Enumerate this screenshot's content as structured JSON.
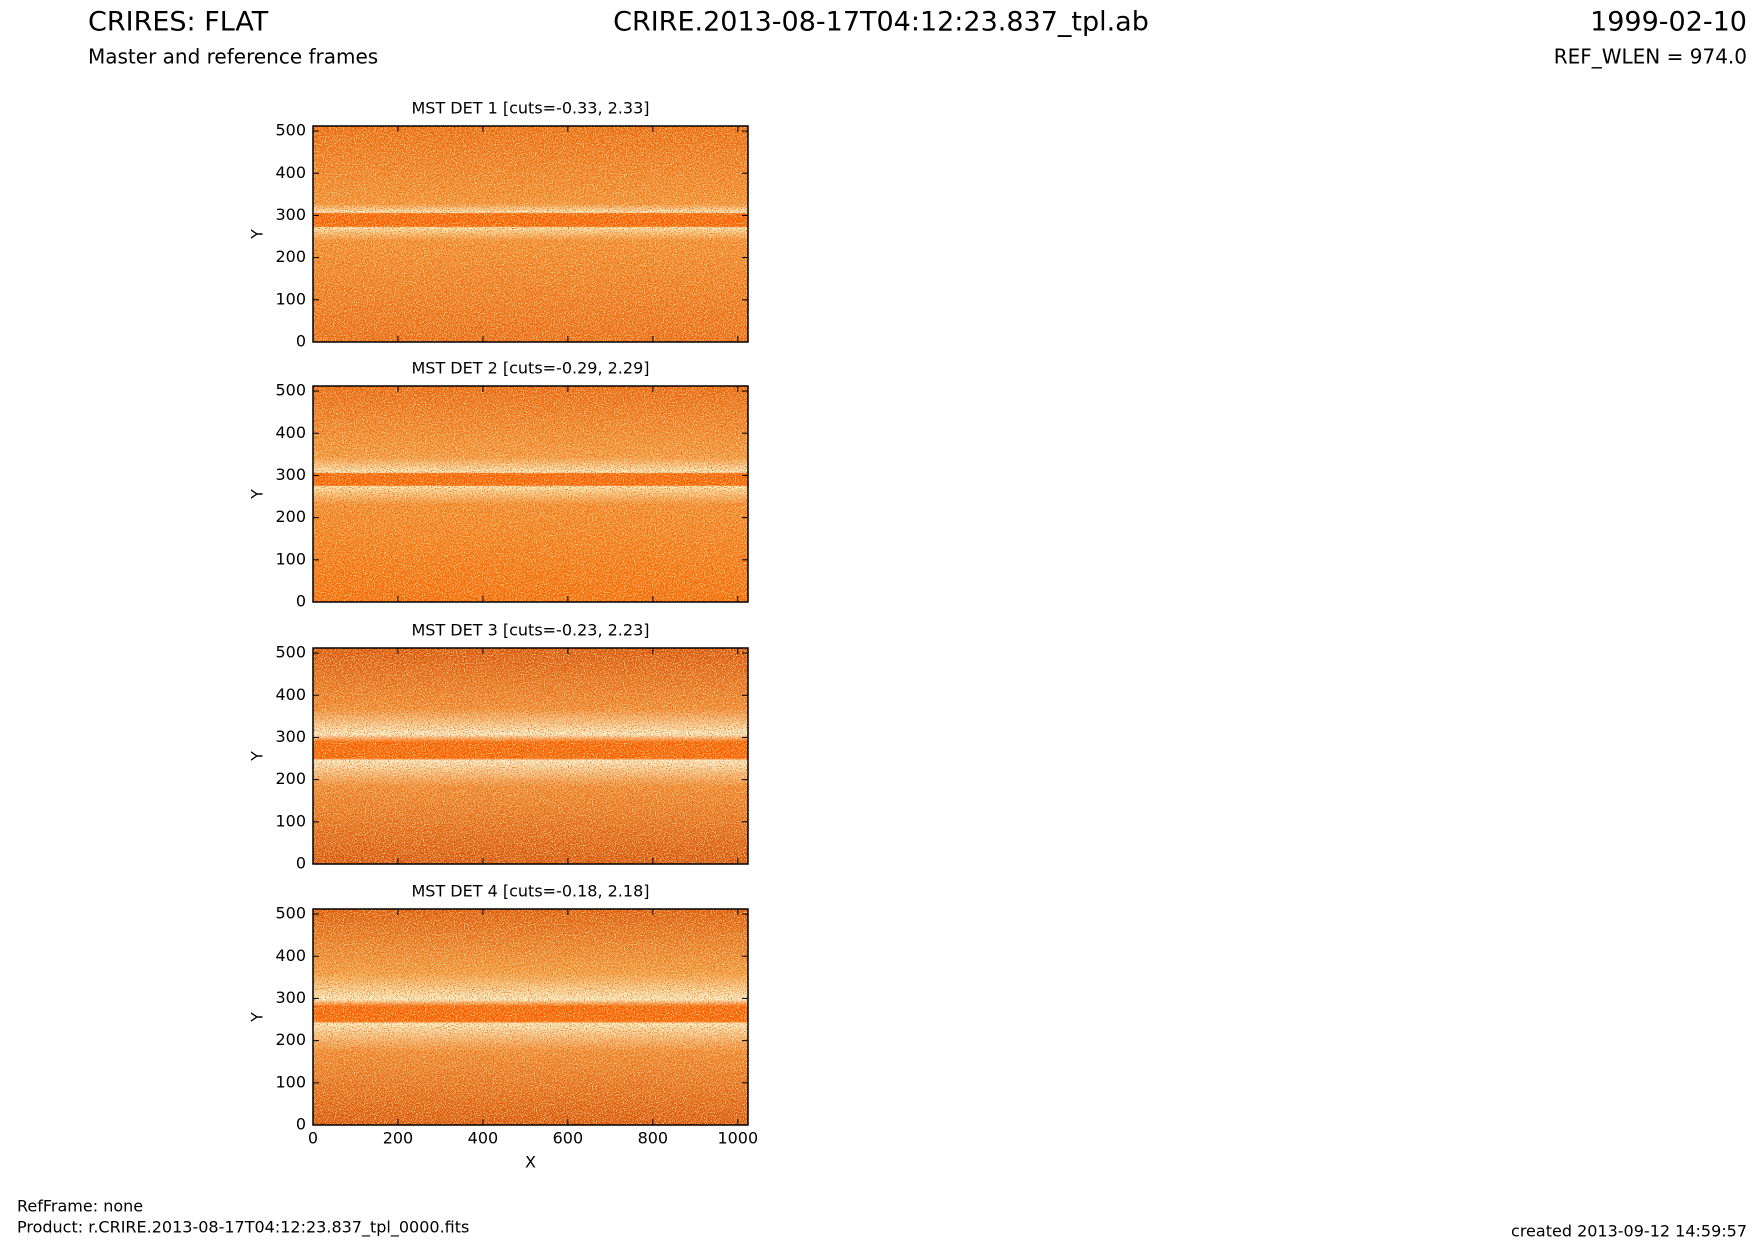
{
  "header": {
    "title": "CRIRES: FLAT",
    "subtitle": "Master and reference frames",
    "file": "CRIRE.2013-08-17T04:12:23.837_tpl.ab",
    "date": "1999-02-10",
    "ref_wlen": "REF_WLEN = 974.0"
  },
  "footer": {
    "ref_frame": "RefFrame: none",
    "product": "Product: r.CRIRE.2013-08-17T04:12:23.837_tpl_0000.fits",
    "created": "created 2013-09-12 14:59:57"
  },
  "chart_data": [
    {
      "type": "image",
      "title": "MST DET 1 [cuts=-0.33, 2.33]",
      "ylabel": "Y",
      "xlim": [
        0,
        1024
      ],
      "ylim": [
        0,
        512
      ],
      "xticks": [
        0,
        200,
        400,
        600,
        800,
        1000
      ],
      "yticks": [
        0,
        100,
        200,
        300,
        400,
        500
      ]
    },
    {
      "type": "image",
      "title": "MST DET 2 [cuts=-0.29, 2.29]",
      "ylabel": "Y",
      "xlim": [
        0,
        1024
      ],
      "ylim": [
        0,
        512
      ],
      "xticks": [
        0,
        200,
        400,
        600,
        800,
        1000
      ],
      "yticks": [
        0,
        100,
        200,
        300,
        400,
        500
      ]
    },
    {
      "type": "image",
      "title": "MST DET 3 [cuts=-0.23, 2.23]",
      "ylabel": "Y",
      "xlim": [
        0,
        1024
      ],
      "ylim": [
        0,
        512
      ],
      "xticks": [
        0,
        200,
        400,
        600,
        800,
        1000
      ],
      "yticks": [
        0,
        100,
        200,
        300,
        400,
        500
      ]
    },
    {
      "type": "image",
      "title": "MST DET 4 [cuts=-0.18, 2.18]",
      "xlabel": "X",
      "ylabel": "Y",
      "xlim": [
        0,
        1024
      ],
      "ylim": [
        0,
        512
      ],
      "xticks": [
        0,
        200,
        400,
        600,
        800,
        1000
      ],
      "yticks": [
        0,
        100,
        200,
        300,
        400,
        500
      ]
    }
  ]
}
